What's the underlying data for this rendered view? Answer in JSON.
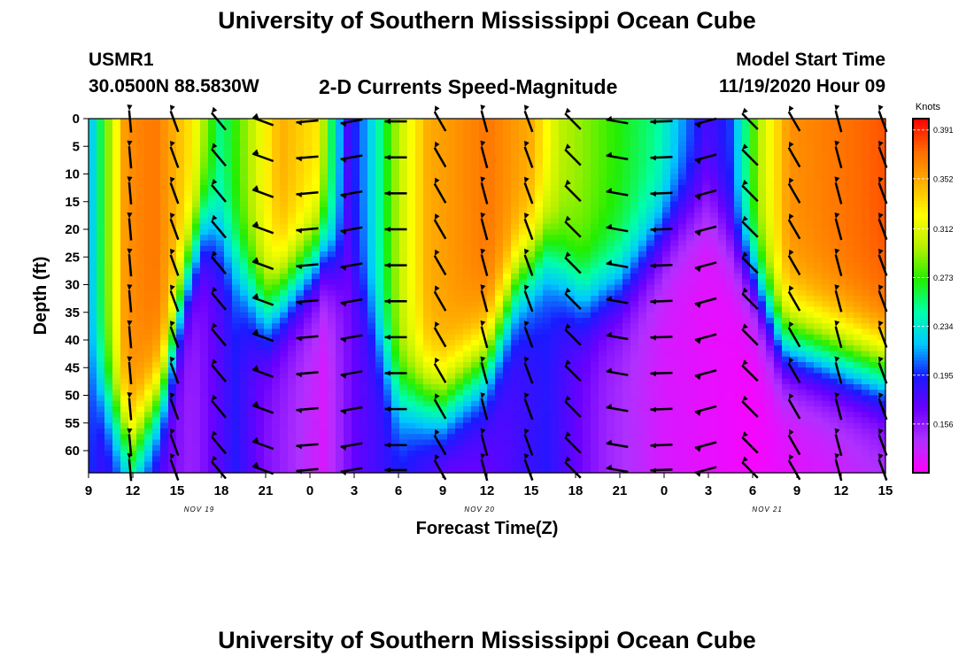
{
  "header": {
    "title": "University of Southern Mississippi Ocean Cube",
    "station": "USMR1",
    "coordinates": "30.0500N 88.5830W",
    "subtitle": "2-D Currents Speed-Magnitude",
    "model_start_label": "Model Start Time",
    "model_start_value": "11/19/2020 Hour 09"
  },
  "footer": {
    "title": "University of Southern Mississippi Ocean Cube"
  },
  "colors": {
    "scale": [
      "#ff00ff",
      "#b030ff",
      "#6a00ff",
      "#1a1aff",
      "#00c8ff",
      "#00ffaa",
      "#22ee00",
      "#b4f000",
      "#ffff00",
      "#ffb000",
      "#ff6a00",
      "#ff0000"
    ],
    "arrow": "#000000"
  },
  "chart_data": {
    "type": "heatmap",
    "xlabel": "Forecast Time(Z)",
    "ylabel": "Depth (ft)",
    "x_range_hours": [
      0,
      54
    ],
    "x_tick_labels": [
      "9",
      "12",
      "15",
      "18",
      "21",
      "0",
      "3",
      "6",
      "9",
      "12",
      "15",
      "18",
      "21",
      "0",
      "3",
      "6",
      "9",
      "12",
      "15"
    ],
    "date_labels": [
      {
        "text": "NOV 19",
        "hour": 7.5
      },
      {
        "text": "NOV 20",
        "hour": 26.5
      },
      {
        "text": "NOV 21",
        "hour": 46
      }
    ],
    "y_range_ft": [
      0,
      64
    ],
    "y_ticks": [
      0,
      5,
      10,
      15,
      20,
      25,
      30,
      35,
      40,
      45,
      50,
      55,
      60
    ],
    "colorbar": {
      "unit": "Knots",
      "min": 0.117,
      "max": 0.4,
      "tick_labels": [
        "0.156",
        "0.195",
        "0.234",
        "0.273",
        "0.312",
        "0.352",
        "0.391"
      ]
    },
    "surface_speed_knots": [
      {
        "hour": 0,
        "v": 0.21
      },
      {
        "hour": 0.5,
        "v": 0.24
      },
      {
        "hour": 1.5,
        "v": 0.3
      },
      {
        "hour": 2.5,
        "v": 0.36
      },
      {
        "hour": 4.5,
        "v": 0.37
      },
      {
        "hour": 7,
        "v": 0.33
      },
      {
        "hour": 9,
        "v": 0.25
      },
      {
        "hour": 11,
        "v": 0.3
      },
      {
        "hour": 13,
        "v": 0.35
      },
      {
        "hour": 15.5,
        "v": 0.33
      },
      {
        "hour": 17.5,
        "v": 0.18
      },
      {
        "hour": 19,
        "v": 0.22
      },
      {
        "hour": 21,
        "v": 0.3
      },
      {
        "hour": 23,
        "v": 0.35
      },
      {
        "hour": 27,
        "v": 0.37
      },
      {
        "hour": 30,
        "v": 0.35
      },
      {
        "hour": 32,
        "v": 0.3
      },
      {
        "hour": 33.5,
        "v": 0.29
      },
      {
        "hour": 36,
        "v": 0.27
      },
      {
        "hour": 38.5,
        "v": 0.25
      },
      {
        "hour": 40.5,
        "v": 0.21
      },
      {
        "hour": 42,
        "v": 0.18
      },
      {
        "hour": 43.5,
        "v": 0.2
      },
      {
        "hour": 45.5,
        "v": 0.3
      },
      {
        "hour": 47.5,
        "v": 0.36
      },
      {
        "hour": 54,
        "v": 0.38
      }
    ],
    "bottom_speed_knots": [
      {
        "hour": 0,
        "v": 0.2
      },
      {
        "hour": 1,
        "v": 0.18
      },
      {
        "hour": 3,
        "v": 0.2
      },
      {
        "hour": 5,
        "v": 0.17
      },
      {
        "hour": 7,
        "v": 0.15
      },
      {
        "hour": 10,
        "v": 0.19
      },
      {
        "hour": 12,
        "v": 0.16
      },
      {
        "hour": 16,
        "v": 0.13
      },
      {
        "hour": 18,
        "v": 0.17
      },
      {
        "hour": 21,
        "v": 0.19
      },
      {
        "hour": 24,
        "v": 0.16
      },
      {
        "hour": 27,
        "v": 0.17
      },
      {
        "hour": 31,
        "v": 0.19
      },
      {
        "hour": 35,
        "v": 0.15
      },
      {
        "hour": 39,
        "v": 0.13
      },
      {
        "hour": 45,
        "v": 0.12
      },
      {
        "hour": 50,
        "v": 0.13
      },
      {
        "hour": 54,
        "v": 0.14
      }
    ],
    "decay_depth_ft": [
      {
        "hour": 0,
        "d": 45
      },
      {
        "hour": 1,
        "d": 50
      },
      {
        "hour": 3,
        "d": 60
      },
      {
        "hour": 5,
        "d": 50
      },
      {
        "hour": 6.5,
        "d": 30
      },
      {
        "hour": 8,
        "d": 18
      },
      {
        "hour": 9,
        "d": 22
      },
      {
        "hour": 12,
        "d": 35
      },
      {
        "hour": 16,
        "d": 24
      },
      {
        "hour": 18,
        "d": 28
      },
      {
        "hour": 21,
        "d": 50
      },
      {
        "hour": 24,
        "d": 52
      },
      {
        "hour": 27,
        "d": 44
      },
      {
        "hour": 29,
        "d": 30
      },
      {
        "hour": 31,
        "d": 24
      },
      {
        "hour": 33.5,
        "d": 32
      },
      {
        "hour": 36,
        "d": 30
      },
      {
        "hour": 40,
        "d": 18
      },
      {
        "hour": 42,
        "d": 15
      },
      {
        "hour": 45,
        "d": 28
      },
      {
        "hour": 47,
        "d": 40
      },
      {
        "hour": 54,
        "d": 46
      }
    ],
    "arrow_hours": [
      3,
      6,
      9,
      12,
      15,
      18,
      21,
      24,
      27,
      30,
      33,
      36,
      39,
      42,
      45,
      48,
      51,
      54
    ],
    "arrow_depths_ft": [
      0.5,
      7,
      13.5,
      20,
      26.5,
      33,
      39.5,
      46,
      52.5,
      59,
      63.5
    ],
    "arrow_direction_deg": [
      {
        "hour": 3,
        "deg": 185
      },
      {
        "hour": 6,
        "deg": 200
      },
      {
        "hour": 9,
        "deg": 220
      },
      {
        "hour": 12,
        "deg": 250
      },
      {
        "hour": 15,
        "deg": 275
      },
      {
        "hour": 18,
        "deg": 280
      },
      {
        "hour": 21,
        "deg": 270
      },
      {
        "hour": 24,
        "deg": 210
      },
      {
        "hour": 27,
        "deg": 195
      },
      {
        "hour": 30,
        "deg": 200
      },
      {
        "hour": 33,
        "deg": 225
      },
      {
        "hour": 36,
        "deg": 260
      },
      {
        "hour": 39,
        "deg": 272
      },
      {
        "hour": 42,
        "deg": 285
      },
      {
        "hour": 45,
        "deg": 225
      },
      {
        "hour": 48,
        "deg": 210
      },
      {
        "hour": 51,
        "deg": 195
      },
      {
        "hour": 54,
        "deg": 200
      }
    ]
  }
}
